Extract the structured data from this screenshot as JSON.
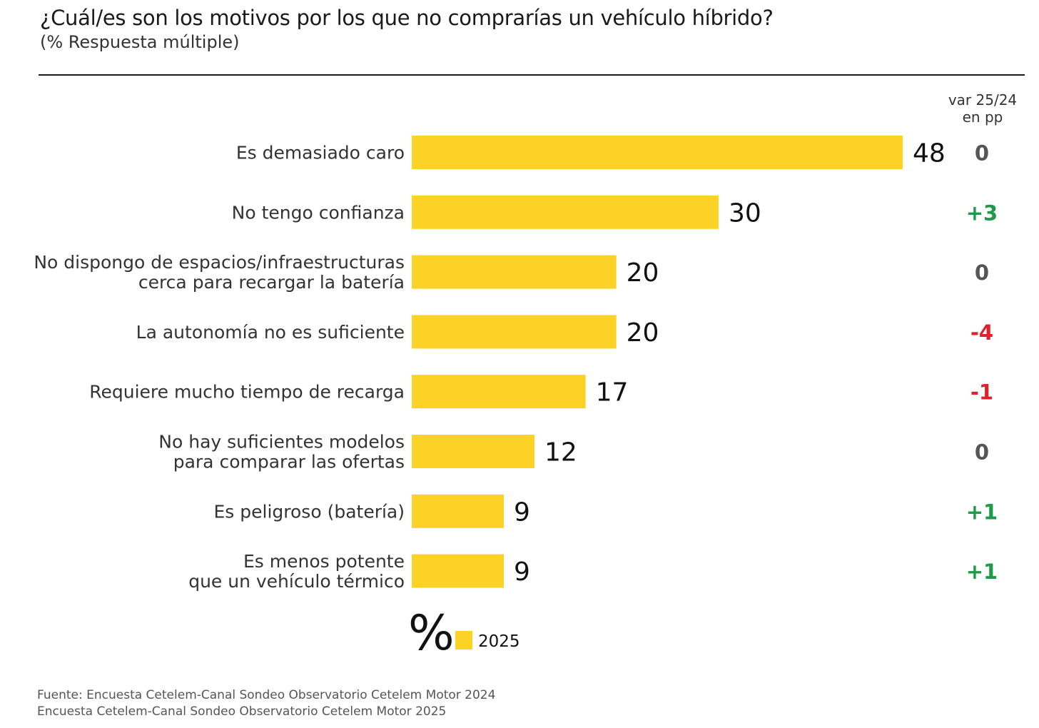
{
  "header": {
    "title": "¿Cuál/es son los motivos por los que no comprarías un vehículo híbrido?",
    "subtitle": "(% Respuesta múltiple)"
  },
  "var_column": {
    "line1": "var 25/24",
    "line2": "en pp"
  },
  "colors": {
    "bar": "#FCD227",
    "positive": "#1E9A48",
    "negative": "#E0202A",
    "neutral": "#555555",
    "label": "#333333",
    "value": "#111111"
  },
  "chart_data": {
    "type": "bar",
    "orientation": "horizontal",
    "categories": [
      [
        "Es demasiado caro"
      ],
      [
        "No tengo confianza"
      ],
      [
        "No dispongo de espacios/infraestructuras",
        "cerca para recargar la batería"
      ],
      [
        "La autonomía no es suficiente"
      ],
      [
        "Requiere mucho tiempo de recarga"
      ],
      [
        "No hay suficientes modelos",
        "para comparar las ofertas"
      ],
      [
        "Es peligroso (batería)"
      ],
      [
        "Es menos potente",
        "que un vehículo térmico"
      ]
    ],
    "series": [
      {
        "name": "2025",
        "values": [
          48,
          30,
          20,
          20,
          17,
          12,
          9,
          9
        ]
      }
    ],
    "variation_pp": [
      "0",
      "+3",
      "0",
      "-4",
      "-1",
      "0",
      "+1",
      "+1"
    ],
    "unit_symbol": "%",
    "xlim": [
      0,
      48
    ],
    "legend_position": "bottom"
  },
  "footer": {
    "source_line1": "Fuente: Encuesta Cetelem-Canal Sondeo Observatorio Cetelem Motor 2024",
    "source_line2": "Encuesta Cetelem-Canal Sondeo Observatorio Cetelem Motor 2025"
  }
}
